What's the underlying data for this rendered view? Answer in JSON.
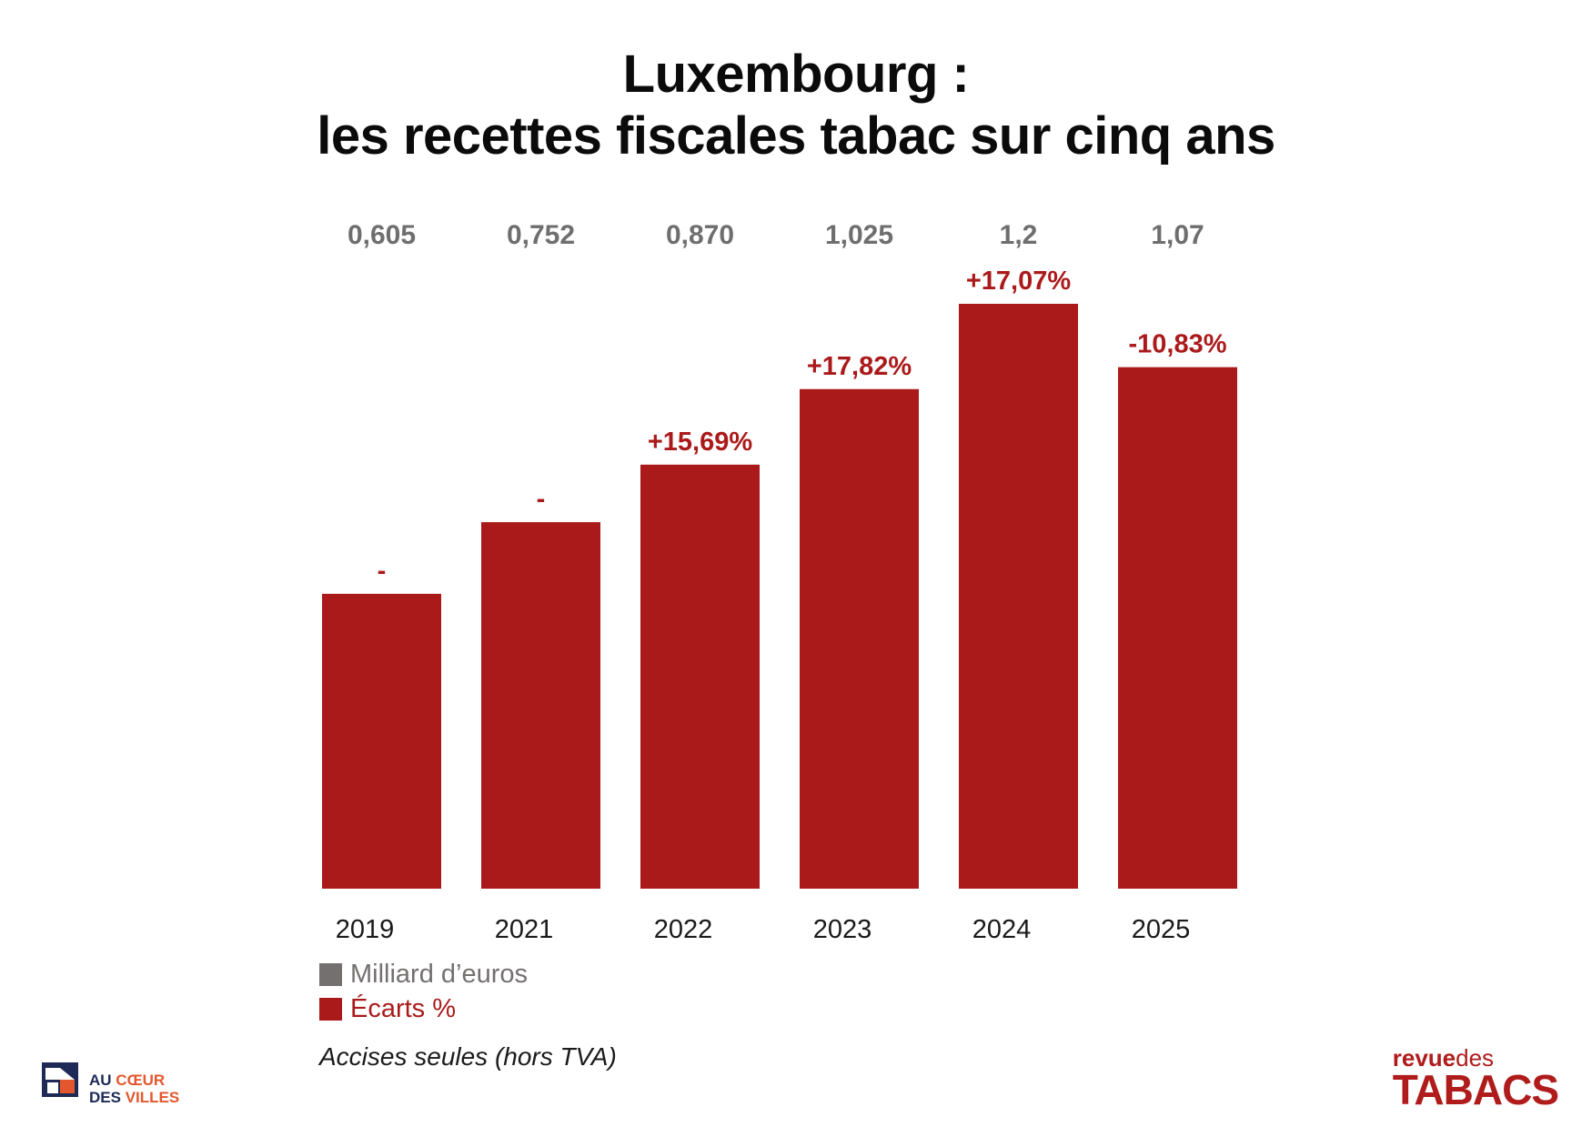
{
  "title": {
    "line1": "Luxembourg :",
    "line2": "les recettes fiscales tabac sur cinq ans"
  },
  "chart_data": {
    "type": "bar",
    "categories": [
      "2019",
      "2021",
      "2022",
      "2023",
      "2024",
      "2025"
    ],
    "series": [
      {
        "name": "Milliard d’euros",
        "values": [
          0.605,
          0.752,
          0.87,
          1.025,
          1.2,
          1.07
        ],
        "labels": [
          "0,605",
          "0,752",
          "0,870",
          "1,025",
          "1,2",
          "1,07"
        ]
      },
      {
        "name": "Écarts %",
        "labels": [
          "-",
          "-",
          "+15,69%",
          "+17,82%",
          "+17,07%",
          "-10,83%"
        ]
      }
    ],
    "bar_values_note_source": "bars represent Milliard d’euros",
    "ylim": [
      0,
      1.2
    ],
    "grid": false,
    "legend_position": "bottom-left"
  },
  "colors": {
    "bar": "#ab1a1b",
    "value_label": "#6e6e6e",
    "percent_label": "#ab1a1b",
    "legend_grey": "#757070",
    "axis_text": "#1a1a1a"
  },
  "legend": {
    "items": [
      {
        "label": "Milliard d’euros",
        "color": "#757070"
      },
      {
        "label": "Écarts %",
        "color": "#ab1a1b"
      }
    ]
  },
  "footnote": "Accises seules (hors TVA)",
  "logos": {
    "left": {
      "line1a": "AU",
      "line1b": "CŒUR",
      "line2a": "DES",
      "line2b": "VILLES",
      "icon": "house-icon"
    },
    "right": {
      "word1": "revue",
      "word2": "des",
      "word3": "TABACS"
    }
  }
}
